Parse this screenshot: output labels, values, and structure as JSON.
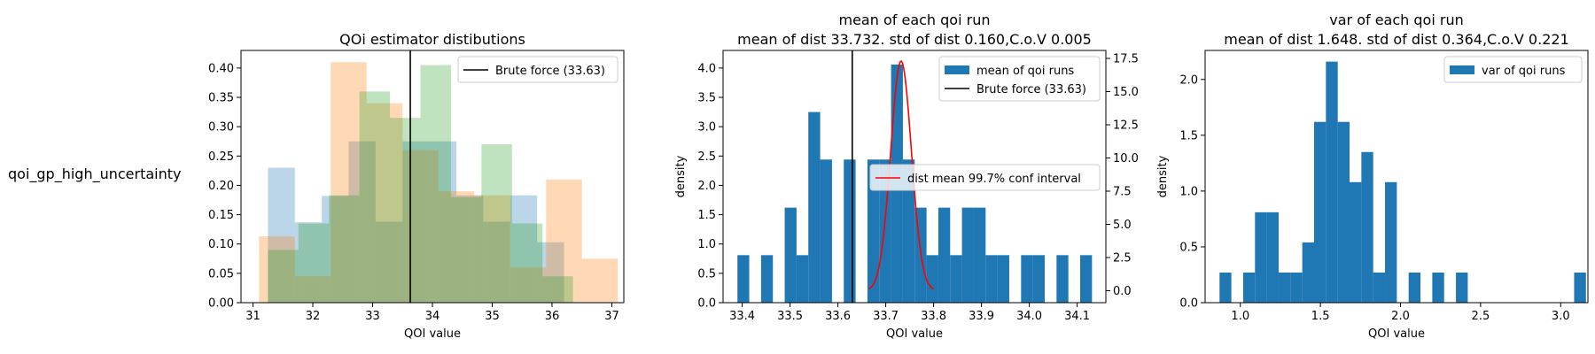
{
  "figure": {
    "row_label": "qoi_gp_high_uncertainty"
  },
  "colors": {
    "blue": "#1f77b4",
    "orange": "#ff7f0e",
    "green": "#2ca02c",
    "red": "#ff0000",
    "black": "#000000"
  },
  "chart_data": [
    {
      "type": "histogram",
      "title": "QOi estimator distibutions",
      "subtitle": "",
      "xlabel": "QOI value",
      "ylabel": "",
      "xlim": [
        30.8,
        37.2
      ],
      "ylim": [
        0,
        0.43
      ],
      "xticks": [
        31,
        32,
        33,
        34,
        35,
        36,
        37
      ],
      "xtick_labels": [
        "31",
        "32",
        "33",
        "34",
        "35",
        "36",
        "37"
      ],
      "yticks": [
        0.0,
        0.05,
        0.1,
        0.15,
        0.2,
        0.25,
        0.3,
        0.35,
        0.4
      ],
      "ytick_labels": [
        "0.00",
        "0.05",
        "0.10",
        "0.15",
        "0.20",
        "0.25",
        "0.30",
        "0.35",
        "0.40"
      ],
      "histograms": [
        {
          "color": "#1f77b4",
          "opacity": 0.3,
          "bins": [
            [
              31.25,
              31.7,
              0.23
            ],
            [
              31.7,
              32.15,
              0.137
            ],
            [
              32.15,
              32.6,
              0.182
            ],
            [
              32.6,
              33.05,
              0.275
            ],
            [
              33.05,
              33.5,
              0.138
            ],
            [
              33.5,
              33.95,
              0.275
            ],
            [
              33.95,
              34.4,
              0.275
            ],
            [
              34.4,
              34.85,
              0.183
            ],
            [
              34.85,
              35.3,
              0.138
            ],
            [
              35.3,
              35.75,
              0.183
            ],
            [
              35.75,
              36.2,
              0.103
            ]
          ]
        },
        {
          "color": "#ff7f0e",
          "opacity": 0.3,
          "bins": [
            [
              31.1,
              31.7,
              0.113
            ],
            [
              31.7,
              32.3,
              0.045
            ],
            [
              32.3,
              32.9,
              0.41
            ],
            [
              32.9,
              33.5,
              0.34
            ],
            [
              33.5,
              34.1,
              0.26
            ],
            [
              34.1,
              34.7,
              0.19
            ],
            [
              34.7,
              35.3,
              0.183
            ],
            [
              35.3,
              35.9,
              0.06
            ],
            [
              35.9,
              36.5,
              0.21
            ],
            [
              36.5,
              37.1,
              0.075
            ]
          ]
        },
        {
          "color": "#2ca02c",
          "opacity": 0.3,
          "bins": [
            [
              31.25,
              31.76,
              0.09
            ],
            [
              31.76,
              32.27,
              0.135
            ],
            [
              32.27,
              32.78,
              0.183
            ],
            [
              32.78,
              33.29,
              0.36
            ],
            [
              33.29,
              33.8,
              0.315
            ],
            [
              33.8,
              34.31,
              0.405
            ],
            [
              34.31,
              34.82,
              0.18
            ],
            [
              34.82,
              35.33,
              0.27
            ],
            [
              35.33,
              35.84,
              0.135
            ],
            [
              35.84,
              36.35,
              0.045
            ]
          ]
        }
      ],
      "vlines": [
        {
          "x": 33.63,
          "color": "#000000",
          "label": "Brute force (33.63)"
        }
      ],
      "legend": {
        "placement": "top-right",
        "entries": [
          {
            "label": "Brute force (33.63)",
            "kind": "line",
            "color": "#000000"
          }
        ]
      }
    },
    {
      "type": "histogram",
      "title": "mean of each qoi run",
      "subtitle": "mean of dist 33.732. std of dist 0.160,C.o.V 0.005",
      "xlabel": "QOI value",
      "ylabel": "density",
      "xlim": [
        33.36,
        34.16
      ],
      "ylim": [
        0,
        4.3
      ],
      "xticks": [
        33.4,
        33.5,
        33.6,
        33.7,
        33.8,
        33.9,
        34.0,
        34.1
      ],
      "xtick_labels": [
        "33.4",
        "33.5",
        "33.6",
        "33.7",
        "33.8",
        "33.9",
        "34.0",
        "34.1"
      ],
      "yticks": [
        0.0,
        0.5,
        1.0,
        1.5,
        2.0,
        2.5,
        3.0,
        3.5,
        4.0
      ],
      "ytick_labels": [
        "0.0",
        "0.5",
        "1.0",
        "1.5",
        "2.0",
        "2.5",
        "3.0",
        "3.5",
        "4.0"
      ],
      "y2lim": [
        -0.9,
        18.1
      ],
      "y2ticks": [
        0.0,
        2.5,
        5.0,
        7.5,
        10.0,
        12.5,
        15.0,
        17.5
      ],
      "y2tick_labels": [
        "0.0",
        "2.5",
        "5.0",
        "7.5",
        "10.0",
        "12.5",
        "15.0",
        "17.5"
      ],
      "bin_start": 33.39,
      "bin_width": 0.0247,
      "bar_color": "#1f77b4",
      "bar_heights": [
        0.81,
        0,
        0.81,
        0,
        1.62,
        0.81,
        3.25,
        2.44,
        0,
        2.44,
        0,
        2.44,
        2.44,
        4.06,
        2.44,
        1.62,
        0.81,
        1.62,
        0.81,
        1.62,
        1.62,
        0.81,
        0.81,
        0,
        0.81,
        0.81,
        0,
        0.81,
        0,
        0.81
      ],
      "vlines": [
        {
          "x": 33.63,
          "color": "#000000",
          "label": "Brute force (33.63)"
        }
      ],
      "curve": {
        "label": "dist mean 99.7% conf interval",
        "color": "#ff0000",
        "mean": 33.732,
        "sd": 0.0217,
        "x_range": [
          33.665,
          33.8
        ],
        "peak": 17.3
      },
      "legends": [
        {
          "placement": "upper right",
          "entries": [
            {
              "label": "mean of qoi runs",
              "kind": "patch",
              "color": "#1f77b4"
            },
            {
              "label": "Brute force (33.63)",
              "kind": "line",
              "color": "#000000"
            }
          ]
        },
        {
          "placement": "center right",
          "entries": [
            {
              "label": "dist mean 99.7% conf interval",
              "kind": "line",
              "color": "#ff0000"
            }
          ]
        }
      ]
    },
    {
      "type": "histogram",
      "title": "var of each qoi run",
      "subtitle": "mean of dist 1.648. std of dist 0.364,C.o.V 0.221",
      "xlabel": "QOI value",
      "ylabel": "density",
      "xlim": [
        0.78,
        3.17
      ],
      "ylim": [
        0,
        2.26
      ],
      "xticks": [
        1.0,
        1.5,
        2.0,
        2.5,
        3.0
      ],
      "xtick_labels": [
        "1.0",
        "1.5",
        "2.0",
        "2.5",
        "3.0"
      ],
      "yticks": [
        0.0,
        0.5,
        1.0,
        1.5,
        2.0
      ],
      "ytick_labels": [
        "0.0",
        "0.5",
        "1.0",
        "1.5",
        "2.0"
      ],
      "bin_start": 0.87,
      "bin_width": 0.0738,
      "bar_color": "#1f77b4",
      "bar_heights": [
        0.27,
        0,
        0.27,
        0.81,
        0.81,
        0.27,
        0.27,
        0.54,
        1.62,
        2.16,
        1.62,
        1.08,
        1.35,
        0.27,
        1.08,
        0,
        0.27,
        0,
        0.27,
        0,
        0.27,
        0,
        0,
        0,
        0,
        0,
        0,
        0,
        0,
        0,
        0.27
      ],
      "legend": {
        "placement": "top-right",
        "entries": [
          {
            "label": "var of qoi runs",
            "kind": "patch",
            "color": "#1f77b4"
          }
        ]
      }
    }
  ]
}
